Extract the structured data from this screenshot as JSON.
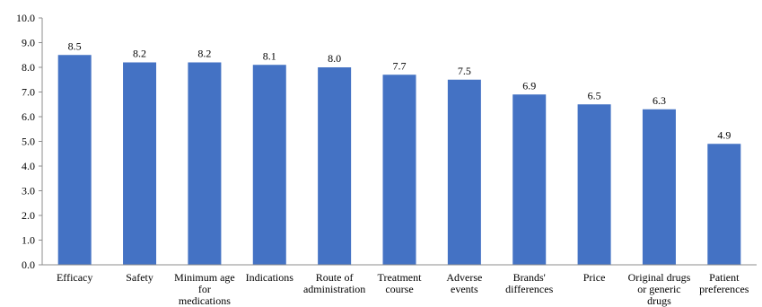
{
  "chart_data": {
    "type": "bar",
    "categories": [
      [
        "Efficacy"
      ],
      [
        "Safety"
      ],
      [
        "Minimum age",
        "for",
        "medications"
      ],
      [
        "Indications"
      ],
      [
        "Route of",
        "administration"
      ],
      [
        "Treatment",
        "course"
      ],
      [
        "Adverse",
        "events"
      ],
      [
        "Brands'",
        "differences"
      ],
      [
        "Price"
      ],
      [
        "Original drugs",
        "or generic",
        "drugs"
      ],
      [
        "Patient",
        "preferences"
      ]
    ],
    "values": [
      8.5,
      8.2,
      8.2,
      8.1,
      8.0,
      7.7,
      7.5,
      6.9,
      6.5,
      6.3,
      4.9
    ],
    "value_labels": [
      "8.5",
      "8.2",
      "8.2",
      "8.1",
      "8.0",
      "7.7",
      "7.5",
      "6.9",
      "6.5",
      "6.3",
      "4.9"
    ],
    "ylim": [
      0,
      10
    ],
    "yticks": [
      "0.0",
      "1.0",
      "2.0",
      "3.0",
      "4.0",
      "5.0",
      "6.0",
      "7.0",
      "8.0",
      "9.0",
      "10.0"
    ],
    "grid": false,
    "legend": "none",
    "bar_color": "#4472C4"
  }
}
